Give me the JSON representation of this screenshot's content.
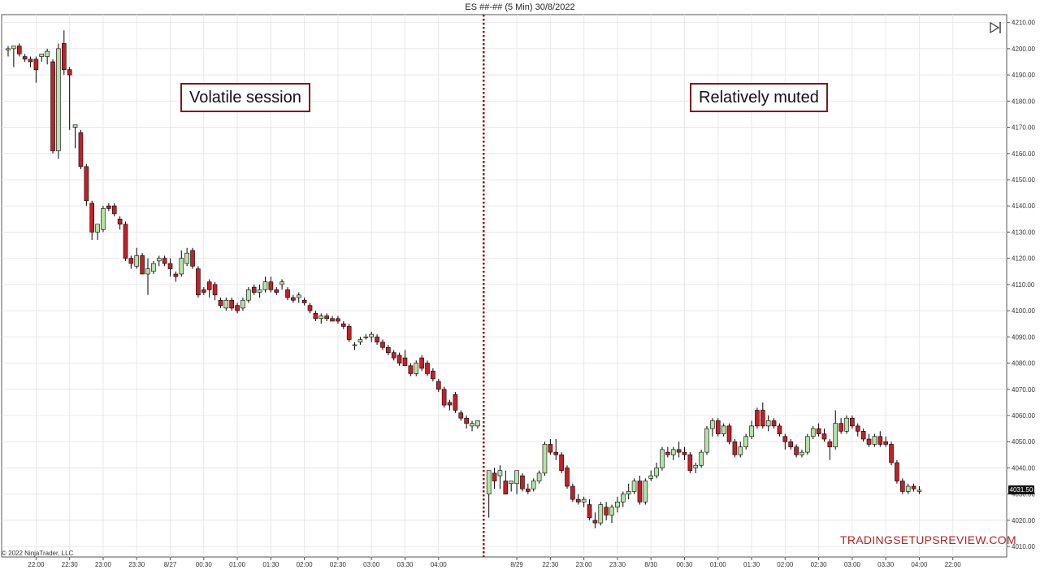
{
  "title": "ES ##-## (5 Min)  30/8/2022",
  "annotations": {
    "left": "Volatile session",
    "right": "Relatively muted"
  },
  "watermark": "TRADINGSETUPSREVIEW.COM",
  "copyright": "© 2022 NinjaTrader, LLC",
  "last_price_label": "4031.50",
  "colors": {
    "up": "#b4e3a5",
    "down": "#c42027",
    "wick": "#000000",
    "grid": "#e8e8e8",
    "separator": "#8b1a10"
  },
  "icons": {
    "scroll_end": "scroll-to-end-icon"
  },
  "chart_data": {
    "type": "candlestick",
    "y_axis": {
      "min": 4006,
      "max": 4213,
      "ticks": [
        4010,
        4020,
        4030,
        4040,
        4050,
        4060,
        4070,
        4080,
        4090,
        4100,
        4110,
        4120,
        4130,
        4140,
        4150,
        4160,
        4170,
        4180,
        4190,
        4200,
        4210
      ],
      "tick_labels": [
        "4010.00",
        "4020.00",
        "4030.00",
        "4040.00",
        "4050.00",
        "4060.00",
        "4070.00",
        "4080.00",
        "4090.00",
        "4100.00",
        "4110.00",
        "4120.00",
        "4130.00",
        "4140.00",
        "4150.00",
        "4160.00",
        "4170.00",
        "4180.00",
        "4190.00",
        "4200.00",
        "4210.00"
      ],
      "position": "right"
    },
    "x_axis": {
      "tick_labels": [
        "22:00",
        "22:30",
        "23:00",
        "23:30",
        "8/27",
        "00:30",
        "01:00",
        "01:30",
        "02:00",
        "02:30",
        "03:00",
        "03:30",
        "04:00",
        "8/29",
        "22:30",
        "23:00",
        "23:30",
        "8/30",
        "00:30",
        "01:00",
        "01:30",
        "02:00",
        "02:30",
        "03:00",
        "03:30",
        "04:00",
        "22:00"
      ],
      "bars_per_label": 6
    },
    "grid": true,
    "session_separator": "dotted vertical line between 8/27 04:00 and 8/29 session",
    "sessions": [
      {
        "name": "Session 1",
        "bars": [
          [
            4199.5,
            4201,
            4197,
            4200
          ],
          [
            4200,
            4201,
            4193,
            4201
          ],
          [
            4201,
            4202,
            4197,
            4198
          ],
          [
            4197,
            4198,
            4195,
            4196
          ],
          [
            4196,
            4197,
            4193,
            4195
          ],
          [
            4196,
            4197,
            4187,
            4192
          ],
          [
            4197,
            4198,
            4195,
            4198
          ],
          [
            4197,
            4200,
            4194,
            4199
          ],
          [
            4195,
            4196,
            4160,
            4161
          ],
          [
            4161,
            4202,
            4158,
            4200
          ],
          [
            4202,
            4207,
            4190,
            4192
          ],
          [
            4192,
            4193,
            4169,
            4190
          ],
          [
            4170,
            4171,
            4162,
            4171
          ],
          [
            4168,
            4169,
            4154,
            4155
          ],
          [
            4155,
            4156,
            4140,
            4142
          ],
          [
            4141,
            4142,
            4127,
            4130
          ],
          [
            4130,
            4131,
            4127,
            4133
          ],
          [
            4131,
            4140,
            4130,
            4139
          ],
          [
            4140,
            4141,
            4138,
            4139
          ],
          [
            4140,
            4141,
            4136,
            4137
          ],
          [
            4135,
            4136,
            4131,
            4133
          ],
          [
            4133,
            4134,
            4119,
            4120
          ],
          [
            4120,
            4121,
            4116,
            4118
          ],
          [
            4117,
            4124,
            4116,
            4121
          ],
          [
            4121,
            4122,
            4115,
            4114
          ],
          [
            4114,
            4120,
            4106,
            4116
          ],
          [
            4115,
            4119,
            4114,
            4118
          ],
          [
            4119,
            4121,
            4117,
            4120
          ],
          [
            4120,
            4121,
            4117,
            4118
          ],
          [
            4118,
            4120,
            4113,
            4116
          ],
          [
            4114,
            4115,
            4111,
            4113
          ],
          [
            4114,
            4123,
            4113,
            4120
          ],
          [
            4118,
            4124,
            4117,
            4122
          ],
          [
            4123,
            4124,
            4116,
            4117
          ],
          [
            4116,
            4117,
            4105,
            4106
          ],
          [
            4108,
            4109,
            4106,
            4107
          ],
          [
            4111,
            4112,
            4105,
            4108
          ],
          [
            4110,
            4111,
            4104,
            4106
          ],
          [
            4104,
            4105,
            4101,
            4102
          ],
          [
            4101,
            4105,
            4100,
            4104
          ],
          [
            4104,
            4105,
            4100,
            4101
          ],
          [
            4102,
            4103,
            4099,
            4100
          ],
          [
            4101,
            4105,
            4100,
            4104
          ],
          [
            4104,
            4109,
            4103,
            4108
          ],
          [
            4109,
            4110,
            4106,
            4107
          ],
          [
            4107,
            4110,
            4105,
            4108
          ],
          [
            4108,
            4113,
            4107,
            4111
          ],
          [
            4111,
            4113,
            4107,
            4108
          ],
          [
            4108,
            4109,
            4106,
            4107
          ],
          [
            4110,
            4112,
            4108,
            4111
          ],
          [
            4108,
            4109,
            4104,
            4105
          ],
          [
            4105,
            4106,
            4103,
            4104
          ],
          [
            4105,
            4107,
            4103,
            4106
          ],
          [
            4104,
            4105,
            4102,
            4103
          ],
          [
            4102,
            4103,
            4099,
            4100
          ],
          [
            4099,
            4100,
            4096,
            4097
          ],
          [
            4097,
            4099,
            4095,
            4098
          ],
          [
            4098,
            4099,
            4096,
            4097
          ],
          [
            4097,
            4098,
            4096,
            4096
          ],
          [
            4097,
            4098,
            4095,
            4096
          ],
          [
            4095,
            4096,
            4093,
            4094
          ],
          [
            4094,
            4095,
            4088,
            4089
          ],
          [
            4087,
            4088,
            4085,
            4087
          ],
          [
            4088,
            4090,
            4087,
            4089
          ],
          [
            4090,
            4091,
            4089,
            4090
          ],
          [
            4090,
            4092,
            4088,
            4091
          ],
          [
            4090,
            4091,
            4087,
            4088
          ],
          [
            4088,
            4089,
            4085,
            4086
          ],
          [
            4086,
            4087,
            4083,
            4084
          ],
          [
            4084,
            4085,
            4081,
            4082
          ],
          [
            4083,
            4084,
            4079,
            4080
          ],
          [
            4082,
            4085,
            4081,
            4079
          ],
          [
            4079,
            4080,
            4075,
            4076
          ],
          [
            4076,
            4081,
            4075,
            4080
          ],
          [
            4082,
            4083,
            4077,
            4078
          ],
          [
            4080,
            4081,
            4075,
            4076
          ],
          [
            4077,
            4078,
            4073,
            4074
          ],
          [
            4073,
            4074,
            4069,
            4070
          ],
          [
            4070,
            4071,
            4063,
            4064
          ],
          [
            4065,
            4066,
            4062,
            4064
          ],
          [
            4068,
            4069,
            4061,
            4062
          ],
          [
            4061,
            4062,
            4058,
            4059
          ],
          [
            4059,
            4060,
            4055,
            4057
          ],
          [
            4056,
            4058,
            4054,
            4057
          ],
          [
            4056,
            4058,
            4055,
            4058
          ]
        ]
      },
      {
        "name": "Session 2",
        "bars": [
          [
            4030,
            4039,
            4021,
            4039
          ],
          [
            4038,
            4040,
            4032,
            4035
          ],
          [
            4037,
            4041,
            4032,
            4039
          ],
          [
            4035,
            4039,
            4030,
            4030
          ],
          [
            4034,
            4035,
            4031,
            4035
          ],
          [
            4034,
            4037,
            4030,
            4039
          ],
          [
            4037,
            4038,
            4031,
            4032
          ],
          [
            4032,
            4034,
            4030,
            4031
          ],
          [
            4032,
            4036,
            4031,
            4035
          ],
          [
            4035,
            4039,
            4034,
            4038
          ],
          [
            4038,
            4050,
            4037,
            4049
          ],
          [
            4049,
            4051,
            4045,
            4046
          ],
          [
            4046,
            4051,
            4043,
            4045
          ],
          [
            4045,
            4046,
            4038,
            4039
          ],
          [
            4040,
            4041,
            4032,
            4033
          ],
          [
            4033,
            4034,
            4027,
            4028
          ],
          [
            4028,
            4030,
            4026,
            4027
          ],
          [
            4027,
            4029,
            4025,
            4028
          ],
          [
            4026,
            4028,
            4020,
            4021
          ],
          [
            4020,
            4023,
            4017,
            4019
          ],
          [
            4019,
            4027,
            4018,
            4026
          ],
          [
            4025,
            4027,
            4020,
            4022
          ],
          [
            4022,
            4026,
            4019,
            4025
          ],
          [
            4025,
            4029,
            4023,
            4027
          ],
          [
            4027,
            4031,
            4025,
            4030
          ],
          [
            4030,
            4034,
            4028,
            4031
          ],
          [
            4031,
            4036,
            4030,
            4035
          ],
          [
            4035,
            4037,
            4026,
            4027
          ],
          [
            4027,
            4036,
            4026,
            4035
          ],
          [
            4036,
            4039,
            4035,
            4037
          ],
          [
            4037,
            4042,
            4036,
            4040
          ],
          [
            4040,
            4048,
            4039,
            4047
          ],
          [
            4046,
            4048,
            4044,
            4045
          ],
          [
            4045,
            4048,
            4043,
            4047
          ],
          [
            4047,
            4050,
            4044,
            4046
          ],
          [
            4046,
            4048,
            4043,
            4045
          ],
          [
            4045,
            4046,
            4038,
            4039
          ],
          [
            4040,
            4042,
            4038,
            4041
          ],
          [
            4041,
            4047,
            4040,
            4046
          ],
          [
            4046,
            4056,
            4045,
            4055
          ],
          [
            4055,
            4059,
            4052,
            4058
          ],
          [
            4058,
            4059,
            4052,
            4053
          ],
          [
            4053,
            4057,
            4052,
            4056
          ],
          [
            4056,
            4057,
            4049,
            4050
          ],
          [
            4050,
            4051,
            4044,
            4045
          ],
          [
            4045,
            4050,
            4044,
            4048
          ],
          [
            4048,
            4053,
            4047,
            4052
          ],
          [
            4052,
            4058,
            4051,
            4056
          ],
          [
            4062,
            4063,
            4055,
            4056
          ],
          [
            4062,
            4065,
            4055,
            4056
          ],
          [
            4056,
            4060,
            4054,
            4058
          ],
          [
            4058,
            4059,
            4055,
            4056
          ],
          [
            4056,
            4057,
            4052,
            4053
          ],
          [
            4052,
            4053,
            4047,
            4050
          ],
          [
            4050,
            4051,
            4047,
            4048
          ],
          [
            4048,
            4049,
            4044,
            4045
          ],
          [
            4045,
            4047,
            4044,
            4046
          ],
          [
            4046,
            4053,
            4045,
            4052
          ],
          [
            4052,
            4056,
            4051,
            4055
          ],
          [
            4055,
            4057,
            4052,
            4053
          ],
          [
            4053,
            4055,
            4050,
            4051
          ],
          [
            4050,
            4051,
            4043,
            4048
          ],
          [
            4048,
            4062,
            4047,
            4057
          ],
          [
            4057,
            4059,
            4053,
            4054
          ],
          [
            4054,
            4060,
            4053,
            4059
          ],
          [
            4059,
            4060,
            4055,
            4056
          ],
          [
            4056,
            4057,
            4052,
            4054
          ],
          [
            4054,
            4055,
            4050,
            4051
          ],
          [
            4051,
            4053,
            4048,
            4049
          ],
          [
            4049,
            4053,
            4048,
            4052
          ],
          [
            4052,
            4054,
            4048,
            4049
          ],
          [
            4050,
            4052,
            4048,
            4049
          ],
          [
            4049,
            4050,
            4041,
            4042
          ],
          [
            4042,
            4043,
            4034,
            4035
          ],
          [
            4035,
            4036,
            4030,
            4031
          ],
          [
            4031,
            4034,
            4030,
            4033
          ],
          [
            4033,
            4034,
            4031,
            4032
          ],
          [
            4031,
            4033,
            4030,
            4031.5
          ]
        ]
      }
    ]
  }
}
